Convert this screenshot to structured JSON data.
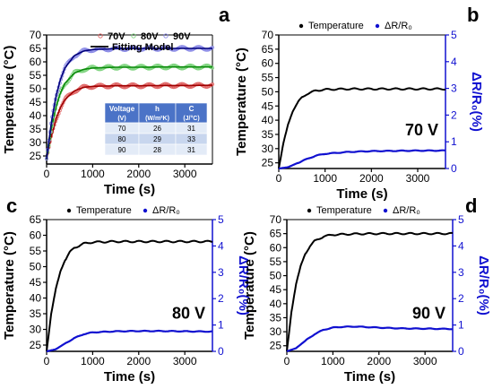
{
  "chart_data": [
    {
      "type": "scatter",
      "panel_label": "a",
      "xlabel": "Time (s)",
      "ylabel": "Temperature (°C)",
      "xlim": [
        0,
        3600
      ],
      "ylim": [
        22,
        70
      ],
      "xticks": [
        0,
        1000,
        2000,
        3000
      ],
      "yticks": [
        25,
        30,
        35,
        40,
        45,
        50,
        55,
        60,
        65,
        70
      ],
      "legend_position": "top",
      "series": [
        {
          "name": "70V",
          "color": "#e06666",
          "fit_color": "#a00000",
          "x": [
            0,
            100,
            200,
            300,
            400,
            600,
            800,
            1000,
            1500,
            2000,
            2500,
            3000,
            3600
          ],
          "y": [
            24,
            32,
            38.5,
            43,
            46,
            49.2,
            50.5,
            50.9,
            51.1,
            51.1,
            51.2,
            51.2,
            51.3
          ]
        },
        {
          "name": "80V",
          "color": "#7fd47f",
          "fit_color": "#0a8a0a",
          "x": [
            0,
            100,
            200,
            300,
            400,
            600,
            800,
            1000,
            1500,
            2000,
            2500,
            3000,
            3600
          ],
          "y": [
            24,
            35,
            43,
            48.5,
            52,
            55.8,
            57.2,
            57.7,
            58,
            58,
            58.1,
            58.1,
            58.1
          ]
        },
        {
          "name": "90V",
          "color": "#8a8ae6",
          "fit_color": "#00007a",
          "x": [
            0,
            100,
            200,
            300,
            400,
            600,
            800,
            1000,
            1500,
            2000,
            2500,
            3000,
            3600
          ],
          "y": [
            24,
            37,
            47,
            53.5,
            57.8,
            62.3,
            64,
            64.6,
            64.9,
            65,
            65,
            65,
            65
          ]
        }
      ],
      "fit_label": "Fitting Model",
      "table": {
        "headers": [
          [
            "Voltage",
            "(V)"
          ],
          [
            "h",
            "(W/m²K)"
          ],
          [
            "C",
            "(J/°C)"
          ]
        ],
        "rows": [
          [
            "70",
            "26",
            "31"
          ],
          [
            "80",
            "29",
            "33"
          ],
          [
            "90",
            "28",
            "31"
          ]
        ]
      }
    },
    {
      "type": "line",
      "panel_label": "b",
      "annotation": "70 V",
      "xlabel": "Time (s)",
      "ylabel": "Temperature (°C)",
      "y2label": "ΔR/R₀(%)",
      "xlim": [
        0,
        3600
      ],
      "ylim": [
        23,
        70
      ],
      "y2lim": [
        0,
        5
      ],
      "xticks": [
        0,
        1000,
        2000,
        3000
      ],
      "yticks": [
        25,
        30,
        35,
        40,
        45,
        50,
        55,
        60,
        65,
        70
      ],
      "y2ticks": [
        0,
        1,
        2,
        3,
        4,
        5
      ],
      "legend_position": "top",
      "series": [
        {
          "name": "Temperature",
          "axis": "left",
          "color": "#000000",
          "x": [
            0,
            100,
            200,
            300,
            400,
            500,
            600,
            800,
            1000,
            1500,
            2000,
            2500,
            3000,
            3600
          ],
          "y": [
            23,
            32,
            38.5,
            43,
            46,
            48,
            49.2,
            50.4,
            50.8,
            51,
            51,
            51,
            51,
            51
          ]
        },
        {
          "name": "ΔR/R₀",
          "axis": "right",
          "color": "#1010d0",
          "x": [
            0,
            200,
            400,
            600,
            800,
            1000,
            1500,
            2000,
            2500,
            3000,
            3600
          ],
          "y": [
            0,
            0.05,
            0.2,
            0.35,
            0.48,
            0.55,
            0.62,
            0.65,
            0.66,
            0.67,
            0.67
          ]
        }
      ]
    },
    {
      "type": "line",
      "panel_label": "c",
      "annotation": "80 V",
      "xlabel": "Time (s)",
      "ylabel": "Temperature (°C)",
      "y2label": "ΔR/R₀(%)",
      "xlim": [
        0,
        3600
      ],
      "ylim": [
        23,
        65
      ],
      "y2lim": [
        0,
        5
      ],
      "xticks": [
        0,
        1000,
        2000,
        3000
      ],
      "yticks": [
        25,
        30,
        35,
        40,
        45,
        50,
        55,
        60,
        65
      ],
      "y2ticks": [
        0,
        1,
        2,
        3,
        4,
        5
      ],
      "legend_position": "top",
      "series": [
        {
          "name": "Temperature",
          "axis": "left",
          "color": "#000000",
          "x": [
            0,
            100,
            200,
            300,
            400,
            500,
            600,
            800,
            1000,
            1500,
            2000,
            2500,
            3000,
            3600
          ],
          "y": [
            23,
            35,
            43,
            48.5,
            52,
            54.5,
            56,
            57.3,
            57.8,
            58,
            58,
            58,
            58,
            58
          ]
        },
        {
          "name": "ΔR/R₀",
          "axis": "right",
          "color": "#1010d0",
          "x": [
            0,
            200,
            400,
            600,
            800,
            1000,
            1500,
            2000,
            2500,
            3000,
            3600
          ],
          "y": [
            0,
            0.08,
            0.3,
            0.5,
            0.65,
            0.72,
            0.76,
            0.77,
            0.77,
            0.76,
            0.75
          ]
        }
      ]
    },
    {
      "type": "line",
      "panel_label": "d",
      "annotation": "90 V",
      "xlabel": "Time (s)",
      "ylabel": "Temperature (°C)",
      "y2label": "ΔR/R₀(%)",
      "xlim": [
        0,
        3600
      ],
      "ylim": [
        23,
        70
      ],
      "y2lim": [
        0,
        5
      ],
      "xticks": [
        0,
        1000,
        2000,
        3000
      ],
      "yticks": [
        25,
        30,
        35,
        40,
        45,
        50,
        55,
        60,
        65,
        70
      ],
      "y2ticks": [
        0,
        1,
        2,
        3,
        4,
        5
      ],
      "legend_position": "top",
      "series": [
        {
          "name": "Temperature",
          "axis": "left",
          "color": "#000000",
          "x": [
            0,
            100,
            200,
            300,
            400,
            500,
            600,
            800,
            1000,
            1500,
            2000,
            2500,
            3000,
            3600
          ],
          "y": [
            23,
            37,
            47,
            53.5,
            57.8,
            60.5,
            62.3,
            64,
            64.6,
            64.9,
            65,
            65,
            65,
            65
          ]
        },
        {
          "name": "ΔR/R₀",
          "axis": "right",
          "color": "#1010d0",
          "x": [
            0,
            200,
            400,
            600,
            800,
            1000,
            1200,
            1500,
            2000,
            2500,
            3000,
            3600
          ],
          "y": [
            0,
            0.12,
            0.4,
            0.65,
            0.82,
            0.9,
            0.93,
            0.94,
            0.9,
            0.87,
            0.86,
            0.85
          ]
        }
      ]
    }
  ]
}
